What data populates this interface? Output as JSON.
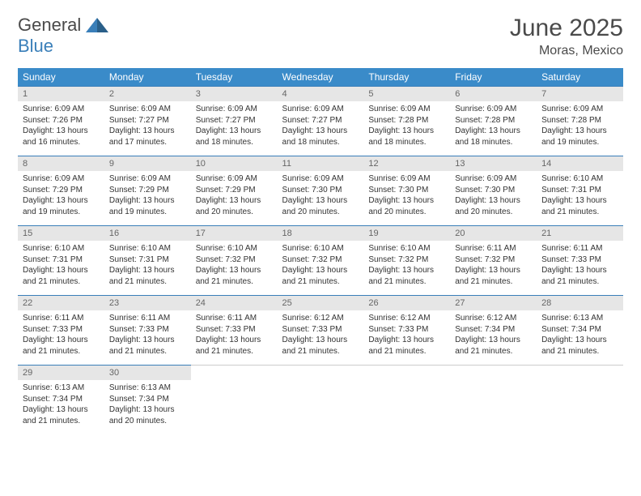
{
  "logo": {
    "word1": "General",
    "word2": "Blue"
  },
  "title": "June 2025",
  "location": "Moras, Mexico",
  "day_headers": [
    "Sunday",
    "Monday",
    "Tuesday",
    "Wednesday",
    "Thursday",
    "Friday",
    "Saturday"
  ],
  "colors": {
    "header_bg": "#3a8bc9",
    "header_text": "#ffffff",
    "num_bg": "#e6e6e6",
    "num_text": "#666666",
    "border_accent": "#3a7fb9",
    "body_text": "#333333",
    "page_bg": "#ffffff"
  },
  "fonts": {
    "title_size": 30,
    "location_size": 16,
    "dayhead_size": 12,
    "num_size": 11,
    "cell_size": 10
  },
  "weeks": [
    [
      {
        "n": "1",
        "sunrise": "Sunrise: 6:09 AM",
        "sunset": "Sunset: 7:26 PM",
        "daylight": "Daylight: 13 hours and 16 minutes."
      },
      {
        "n": "2",
        "sunrise": "Sunrise: 6:09 AM",
        "sunset": "Sunset: 7:27 PM",
        "daylight": "Daylight: 13 hours and 17 minutes."
      },
      {
        "n": "3",
        "sunrise": "Sunrise: 6:09 AM",
        "sunset": "Sunset: 7:27 PM",
        "daylight": "Daylight: 13 hours and 18 minutes."
      },
      {
        "n": "4",
        "sunrise": "Sunrise: 6:09 AM",
        "sunset": "Sunset: 7:27 PM",
        "daylight": "Daylight: 13 hours and 18 minutes."
      },
      {
        "n": "5",
        "sunrise": "Sunrise: 6:09 AM",
        "sunset": "Sunset: 7:28 PM",
        "daylight": "Daylight: 13 hours and 18 minutes."
      },
      {
        "n": "6",
        "sunrise": "Sunrise: 6:09 AM",
        "sunset": "Sunset: 7:28 PM",
        "daylight": "Daylight: 13 hours and 18 minutes."
      },
      {
        "n": "7",
        "sunrise": "Sunrise: 6:09 AM",
        "sunset": "Sunset: 7:28 PM",
        "daylight": "Daylight: 13 hours and 19 minutes."
      }
    ],
    [
      {
        "n": "8",
        "sunrise": "Sunrise: 6:09 AM",
        "sunset": "Sunset: 7:29 PM",
        "daylight": "Daylight: 13 hours and 19 minutes."
      },
      {
        "n": "9",
        "sunrise": "Sunrise: 6:09 AM",
        "sunset": "Sunset: 7:29 PM",
        "daylight": "Daylight: 13 hours and 19 minutes."
      },
      {
        "n": "10",
        "sunrise": "Sunrise: 6:09 AM",
        "sunset": "Sunset: 7:29 PM",
        "daylight": "Daylight: 13 hours and 20 minutes."
      },
      {
        "n": "11",
        "sunrise": "Sunrise: 6:09 AM",
        "sunset": "Sunset: 7:30 PM",
        "daylight": "Daylight: 13 hours and 20 minutes."
      },
      {
        "n": "12",
        "sunrise": "Sunrise: 6:09 AM",
        "sunset": "Sunset: 7:30 PM",
        "daylight": "Daylight: 13 hours and 20 minutes."
      },
      {
        "n": "13",
        "sunrise": "Sunrise: 6:09 AM",
        "sunset": "Sunset: 7:30 PM",
        "daylight": "Daylight: 13 hours and 20 minutes."
      },
      {
        "n": "14",
        "sunrise": "Sunrise: 6:10 AM",
        "sunset": "Sunset: 7:31 PM",
        "daylight": "Daylight: 13 hours and 21 minutes."
      }
    ],
    [
      {
        "n": "15",
        "sunrise": "Sunrise: 6:10 AM",
        "sunset": "Sunset: 7:31 PM",
        "daylight": "Daylight: 13 hours and 21 minutes."
      },
      {
        "n": "16",
        "sunrise": "Sunrise: 6:10 AM",
        "sunset": "Sunset: 7:31 PM",
        "daylight": "Daylight: 13 hours and 21 minutes."
      },
      {
        "n": "17",
        "sunrise": "Sunrise: 6:10 AM",
        "sunset": "Sunset: 7:32 PM",
        "daylight": "Daylight: 13 hours and 21 minutes."
      },
      {
        "n": "18",
        "sunrise": "Sunrise: 6:10 AM",
        "sunset": "Sunset: 7:32 PM",
        "daylight": "Daylight: 13 hours and 21 minutes."
      },
      {
        "n": "19",
        "sunrise": "Sunrise: 6:10 AM",
        "sunset": "Sunset: 7:32 PM",
        "daylight": "Daylight: 13 hours and 21 minutes."
      },
      {
        "n": "20",
        "sunrise": "Sunrise: 6:11 AM",
        "sunset": "Sunset: 7:32 PM",
        "daylight": "Daylight: 13 hours and 21 minutes."
      },
      {
        "n": "21",
        "sunrise": "Sunrise: 6:11 AM",
        "sunset": "Sunset: 7:33 PM",
        "daylight": "Daylight: 13 hours and 21 minutes."
      }
    ],
    [
      {
        "n": "22",
        "sunrise": "Sunrise: 6:11 AM",
        "sunset": "Sunset: 7:33 PM",
        "daylight": "Daylight: 13 hours and 21 minutes."
      },
      {
        "n": "23",
        "sunrise": "Sunrise: 6:11 AM",
        "sunset": "Sunset: 7:33 PM",
        "daylight": "Daylight: 13 hours and 21 minutes."
      },
      {
        "n": "24",
        "sunrise": "Sunrise: 6:11 AM",
        "sunset": "Sunset: 7:33 PM",
        "daylight": "Daylight: 13 hours and 21 minutes."
      },
      {
        "n": "25",
        "sunrise": "Sunrise: 6:12 AM",
        "sunset": "Sunset: 7:33 PM",
        "daylight": "Daylight: 13 hours and 21 minutes."
      },
      {
        "n": "26",
        "sunrise": "Sunrise: 6:12 AM",
        "sunset": "Sunset: 7:33 PM",
        "daylight": "Daylight: 13 hours and 21 minutes."
      },
      {
        "n": "27",
        "sunrise": "Sunrise: 6:12 AM",
        "sunset": "Sunset: 7:34 PM",
        "daylight": "Daylight: 13 hours and 21 minutes."
      },
      {
        "n": "28",
        "sunrise": "Sunrise: 6:13 AM",
        "sunset": "Sunset: 7:34 PM",
        "daylight": "Daylight: 13 hours and 21 minutes."
      }
    ],
    [
      {
        "n": "29",
        "sunrise": "Sunrise: 6:13 AM",
        "sunset": "Sunset: 7:34 PM",
        "daylight": "Daylight: 13 hours and 21 minutes."
      },
      {
        "n": "30",
        "sunrise": "Sunrise: 6:13 AM",
        "sunset": "Sunset: 7:34 PM",
        "daylight": "Daylight: 13 hours and 20 minutes."
      },
      null,
      null,
      null,
      null,
      null
    ]
  ]
}
